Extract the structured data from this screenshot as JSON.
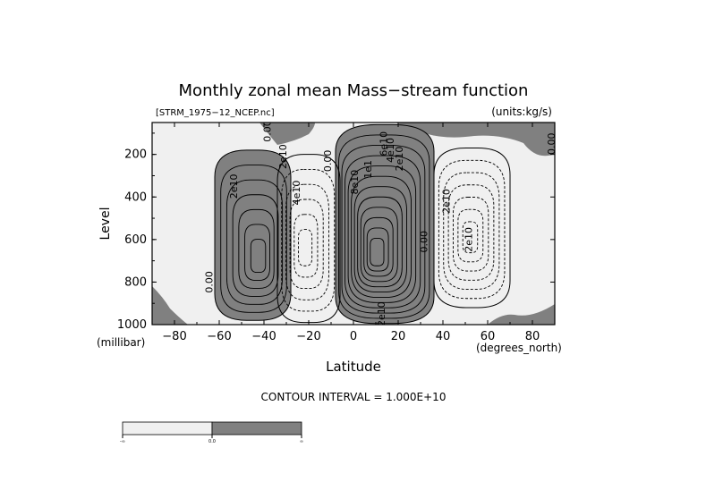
{
  "chart_data": {
    "type": "contour",
    "title": "Monthly zonal mean Mass−stream function",
    "file_label": "[STRM_1975−12_NCEP.nc]",
    "units_label": "(units:kg/s)",
    "xlabel": "Latitude",
    "ylabel": "Level",
    "x_units": "(degrees_north)",
    "y_units": "(millibar)",
    "xlim": [
      -90,
      90
    ],
    "ylim": [
      1000,
      50
    ],
    "y_inverted": true,
    "x_ticks": [
      -80,
      -60,
      -40,
      -20,
      0,
      20,
      40,
      60,
      80
    ],
    "y_ticks": [
      200,
      400,
      600,
      800,
      1000
    ],
    "contour_interval_text": "CONTOUR INTERVAL = 1.000E+10",
    "contour_interval": 10000000000.0,
    "shading": {
      "negative_color": "#f0f0f0",
      "positive_color": "#808080"
    },
    "cells": [
      {
        "sign": "positive",
        "center": [
          -42,
          700
        ],
        "lat_range": [
          -62,
          -28
        ],
        "p_range": [
          180,
          980
        ],
        "levels": 6
      },
      {
        "sign": "negative",
        "center": [
          -22,
          650
        ],
        "lat_range": [
          -34,
          -6
        ],
        "p_range": [
          200,
          990
        ],
        "levels": 5
      },
      {
        "sign": "positive",
        "center": [
          10,
          680
        ],
        "lat_range": [
          -8,
          36
        ],
        "p_range": [
          60,
          995
        ],
        "levels": 11
      },
      {
        "sign": "negative",
        "center": [
          52,
          600
        ],
        "lat_range": [
          36,
          70
        ],
        "p_range": [
          170,
          920
        ],
        "levels": 6
      }
    ],
    "contour_labels": [
      {
        "text": "2e10",
        "lat": -52,
        "p": 350
      },
      {
        "text": "0.00",
        "lat": -63,
        "p": 800
      },
      {
        "text": "0.00",
        "lat": -90,
        "p": 820
      },
      {
        "text": "0.00",
        "lat": -37,
        "p": 90
      },
      {
        "text": "2e10",
        "lat": -30,
        "p": 210
      },
      {
        "text": "4e10",
        "lat": -24,
        "p": 380
      },
      {
        "text": "0.00",
        "lat": -10,
        "p": 230
      },
      {
        "text": "8e10",
        "lat": 2,
        "p": 330
      },
      {
        "text": "1e1",
        "lat": 8,
        "p": 270
      },
      {
        "text": "2e10",
        "lat": 22,
        "p": 220
      },
      {
        "text": "4e10",
        "lat": 18,
        "p": 180
      },
      {
        "text": "6e10",
        "lat": 15,
        "p": 150
      },
      {
        "text": "2e10",
        "lat": 14,
        "p": 950
      },
      {
        "text": "0.00",
        "lat": 33,
        "p": 610
      },
      {
        "text": "2e10",
        "lat": 43,
        "p": 420
      },
      {
        "text": "2e10",
        "lat": 53,
        "p": 600
      },
      {
        "text": "0.00",
        "lat": 90,
        "p": 150
      }
    ],
    "colorbar": {
      "labels": [
        "-∞",
        "0.0",
        "∞"
      ],
      "colors": [
        "#f0f0f0",
        "#808080"
      ]
    }
  }
}
